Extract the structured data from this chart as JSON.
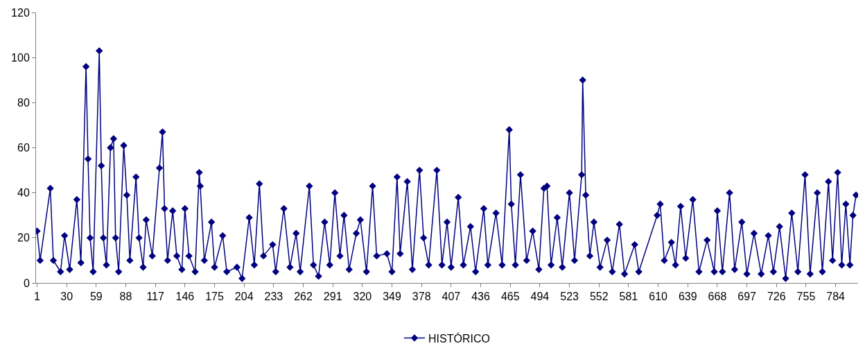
{
  "chart_data": {
    "type": "line",
    "legend": "bottom",
    "marker": "diamond",
    "line_style": "solid",
    "grid": false,
    "xlim": [
      0,
      806
    ],
    "xticks": [
      1,
      30,
      59,
      88,
      117,
      146,
      175,
      204,
      233,
      262,
      291,
      320,
      349,
      378,
      407,
      436,
      465,
      494,
      523,
      552,
      581,
      610,
      639,
      668,
      697,
      726,
      755,
      784
    ],
    "ylim": [
      0,
      120
    ],
    "yticks": [
      0,
      20,
      40,
      60,
      80,
      100,
      120
    ],
    "series": [
      {
        "name": "HISTÓRICO",
        "color": "#000080",
        "x": [
          1,
          4,
          14,
          17,
          24,
          28,
          33,
          40,
          44,
          49,
          51,
          53,
          56,
          62,
          64,
          66,
          69,
          73,
          76,
          78,
          81,
          86,
          89,
          92,
          98,
          101,
          105,
          108,
          114,
          121,
          124,
          126,
          129,
          134,
          138,
          143,
          146,
          150,
          156,
          160,
          161,
          165,
          172,
          175,
          183,
          187,
          197,
          202,
          209,
          214,
          219,
          223,
          232,
          235,
          243,
          249,
          255,
          259,
          268,
          272,
          277,
          283,
          288,
          293,
          298,
          302,
          307,
          314,
          318,
          324,
          330,
          334,
          344,
          349,
          354,
          357,
          364,
          369,
          376,
          380,
          385,
          393,
          398,
          403,
          407,
          414,
          419,
          426,
          431,
          439,
          443,
          451,
          457,
          464,
          466,
          470,
          475,
          481,
          487,
          493,
          498,
          501,
          505,
          511,
          516,
          523,
          528,
          535,
          536,
          539,
          543,
          547,
          553,
          560,
          565,
          572,
          577,
          587,
          591,
          609,
          612,
          616,
          623,
          627,
          632,
          637,
          644,
          650,
          658,
          665,
          668,
          673,
          680,
          685,
          692,
          697,
          704,
          711,
          718,
          723,
          729,
          735,
          741,
          747,
          754,
          759,
          766,
          771,
          777,
          781,
          786,
          790,
          794,
          798,
          801,
          804
        ],
        "values": [
          23,
          10,
          42,
          10,
          5,
          21,
          6,
          37,
          9,
          96,
          55,
          20,
          5,
          103,
          52,
          20,
          8,
          60,
          64,
          20,
          5,
          61,
          39,
          10,
          47,
          20,
          7,
          28,
          12,
          51,
          67,
          33,
          10,
          32,
          12,
          6,
          33,
          12,
          5,
          49,
          43,
          10,
          27,
          7,
          21,
          5,
          7,
          2,
          29,
          8,
          44,
          12,
          17,
          5,
          33,
          7,
          22,
          5,
          43,
          8,
          3,
          27,
          8,
          40,
          12,
          30,
          6,
          22,
          28,
          5,
          43,
          12,
          13,
          5,
          47,
          13,
          45,
          6,
          50,
          20,
          8,
          50,
          8,
          27,
          7,
          38,
          8,
          25,
          5,
          33,
          8,
          31,
          8,
          68,
          35,
          8,
          48,
          10,
          23,
          6,
          42,
          43,
          8,
          29,
          7,
          40,
          10,
          48,
          90,
          39,
          12,
          27,
          7,
          19,
          5,
          26,
          4,
          17,
          5,
          30,
          35,
          10,
          18,
          8,
          34,
          11,
          37,
          5,
          19,
          5,
          32,
          5,
          40,
          6,
          27,
          4,
          22,
          4,
          21,
          5,
          25,
          2,
          31,
          5,
          48,
          4,
          40,
          5,
          45,
          10,
          49,
          8,
          35,
          8,
          30,
          39
        ]
      }
    ]
  }
}
